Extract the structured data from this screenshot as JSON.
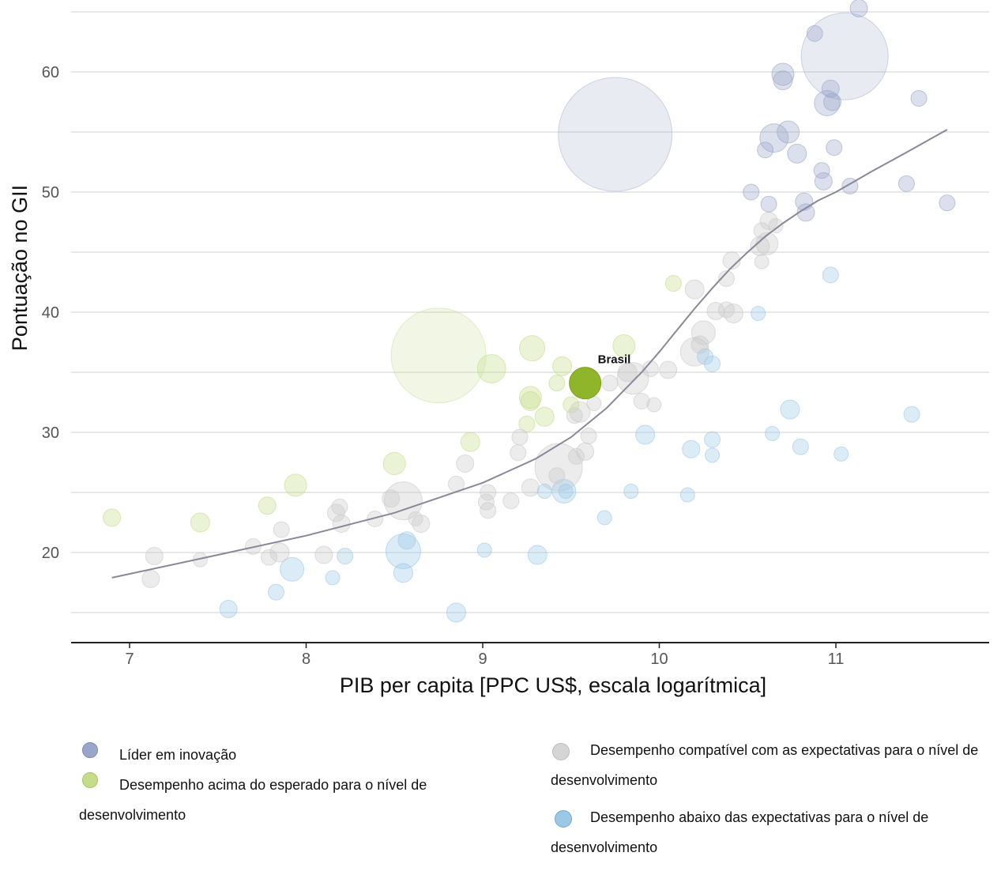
{
  "chart_data": {
    "type": "scatter",
    "title": "",
    "xlabel": "PIB per capita [PPC US$, escala logarítmica]",
    "ylabel": "Pontuação no GII",
    "xlim": [
      6.7,
      11.85
    ],
    "ylim": [
      12.5,
      65.5
    ],
    "x_ticks": [
      7,
      8,
      9,
      10,
      11
    ],
    "y_ticks": [
      20,
      30,
      40,
      50,
      60
    ],
    "y_gridlines": [
      15,
      20,
      25,
      30,
      35,
      40,
      45,
      50,
      55,
      60,
      65
    ],
    "grid": true,
    "legend_position": "bottom",
    "colors": {
      "leader": "#9aa6c9",
      "above": "#c5dc8a",
      "in_line": "#c9c9c9",
      "below": "#9cc8e8",
      "brasil": "#8fb62b",
      "trend": "#8a8797"
    },
    "series": [
      {
        "name": "Líder em inovação",
        "key": "leader",
        "points": [
          [
            11.05,
            61.3,
            55
          ],
          [
            9.75,
            54.8,
            72
          ],
          [
            10.65,
            54.5,
            18
          ],
          [
            10.7,
            59.8,
            14
          ],
          [
            10.7,
            59.3,
            12
          ],
          [
            10.73,
            55,
            14
          ],
          [
            10.95,
            57.4,
            16
          ],
          [
            10.97,
            58.6,
            11
          ],
          [
            10.98,
            57.5,
            11
          ],
          [
            10.88,
            63.2,
            10
          ],
          [
            11.13,
            65.3,
            11
          ],
          [
            11.47,
            57.8,
            10
          ],
          [
            10.6,
            53.5,
            10
          ],
          [
            10.78,
            53.2,
            12
          ],
          [
            10.99,
            53.7,
            10
          ],
          [
            10.92,
            51.8,
            10
          ],
          [
            10.93,
            50.9,
            11
          ],
          [
            11.08,
            50.5,
            10
          ],
          [
            11.4,
            50.7,
            10
          ],
          [
            10.52,
            50,
            10
          ],
          [
            10.62,
            49,
            10
          ],
          [
            10.82,
            49.2,
            11
          ],
          [
            10.83,
            48.3,
            11
          ],
          [
            11.63,
            49.1,
            10
          ]
        ]
      },
      {
        "name": "Desempenho acima do esperado para o nível de desenvolvimento",
        "key": "above",
        "points": [
          [
            8.75,
            36.4,
            60
          ],
          [
            9.05,
            35.3,
            18
          ],
          [
            9.28,
            37,
            16
          ],
          [
            9.8,
            37.2,
            14
          ],
          [
            9.45,
            35.5,
            12
          ],
          [
            9.42,
            34.1,
            10
          ],
          [
            9.27,
            32.9,
            14
          ],
          [
            9.27,
            32.6,
            12
          ],
          [
            9.35,
            31.3,
            12
          ],
          [
            9.25,
            30.7,
            10
          ],
          [
            9.5,
            32.3,
            10
          ],
          [
            8.93,
            29.2,
            12
          ],
          [
            8.5,
            27.4,
            14
          ],
          [
            7.94,
            25.6,
            14
          ],
          [
            7.78,
            23.9,
            11
          ],
          [
            7.4,
            22.5,
            12
          ],
          [
            6.9,
            22.9,
            11
          ],
          [
            10.08,
            42.4,
            10
          ]
        ]
      },
      {
        "name": "Desempenho compatível com as expectativas para o nível de desenvolvimento",
        "key": "in_line",
        "points": [
          [
            10.58,
            46.8,
            10
          ],
          [
            10.62,
            47.6,
            11
          ],
          [
            10.66,
            47.2,
            9
          ],
          [
            10.57,
            45.5,
            12
          ],
          [
            10.61,
            45.7,
            14
          ],
          [
            10.58,
            44.2,
            9
          ],
          [
            10.41,
            44.3,
            11
          ],
          [
            10.38,
            42.8,
            10
          ],
          [
            10.2,
            41.9,
            12
          ],
          [
            10.32,
            40.1,
            11
          ],
          [
            10.38,
            40.2,
            10
          ],
          [
            10.42,
            39.9,
            12
          ],
          [
            10.25,
            38.3,
            15
          ],
          [
            10.23,
            37.3,
            11
          ],
          [
            10.2,
            36.7,
            18
          ],
          [
            10.05,
            35.2,
            11
          ],
          [
            9.85,
            34.5,
            20
          ],
          [
            9.82,
            35,
            12
          ],
          [
            9.95,
            35.3,
            10
          ],
          [
            9.72,
            34.1,
            10
          ],
          [
            9.63,
            32.4,
            9
          ],
          [
            9.9,
            32.6,
            10
          ],
          [
            9.97,
            32.3,
            9
          ],
          [
            9.55,
            31.7,
            13
          ],
          [
            9.52,
            31.4,
            10
          ],
          [
            9.6,
            29.7,
            10
          ],
          [
            9.21,
            29.6,
            10
          ],
          [
            9.2,
            28.3,
            10
          ],
          [
            9.58,
            28.4,
            11
          ],
          [
            9.53,
            28,
            10
          ],
          [
            8.9,
            27.4,
            11
          ],
          [
            9.43,
            27.1,
            30
          ],
          [
            9.42,
            26.4,
            10
          ],
          [
            9.27,
            25.4,
            11
          ],
          [
            8.85,
            25.7,
            10
          ],
          [
            9.03,
            25,
            10
          ],
          [
            8.55,
            24.3,
            24
          ],
          [
            8.48,
            24.5,
            11
          ],
          [
            9.02,
            24.2,
            10
          ],
          [
            9.16,
            24.3,
            10
          ],
          [
            9.03,
            23.5,
            10
          ],
          [
            8.19,
            23.8,
            10
          ],
          [
            8.17,
            23.3,
            11
          ],
          [
            8.2,
            22.4,
            11
          ],
          [
            8.62,
            22.8,
            9
          ],
          [
            8.65,
            22.4,
            11
          ],
          [
            8.39,
            22.8,
            10
          ],
          [
            7.86,
            21.9,
            10
          ],
          [
            7.7,
            20.5,
            10
          ],
          [
            7.85,
            20,
            12
          ],
          [
            7.79,
            19.6,
            10
          ],
          [
            8.1,
            19.8,
            11
          ],
          [
            7.14,
            19.7,
            11
          ],
          [
            7.4,
            19.4,
            9
          ],
          [
            7.12,
            17.8,
            11
          ]
        ]
      },
      {
        "name": "Desempenho abaixo das expectativas para o nível de desenvolvimento",
        "key": "below",
        "points": [
          [
            10.97,
            43.1,
            10
          ],
          [
            10.56,
            39.9,
            9
          ],
          [
            10.26,
            36.3,
            10
          ],
          [
            10.3,
            35.7,
            10
          ],
          [
            10.74,
            31.9,
            12
          ],
          [
            11.43,
            31.5,
            10
          ],
          [
            9.92,
            29.8,
            12
          ],
          [
            10.64,
            29.9,
            9
          ],
          [
            10.3,
            29.4,
            10
          ],
          [
            10.18,
            28.6,
            11
          ],
          [
            10.3,
            28.1,
            9
          ],
          [
            10.8,
            28.8,
            10
          ],
          [
            11.03,
            28.2,
            9
          ],
          [
            9.46,
            25.1,
            15
          ],
          [
            9.47,
            25.1,
            9
          ],
          [
            9.84,
            25.1,
            9
          ],
          [
            9.35,
            25.1,
            9
          ],
          [
            10.16,
            24.8,
            9
          ],
          [
            9.69,
            22.9,
            9
          ],
          [
            8.57,
            21,
            11
          ],
          [
            8.55,
            20.1,
            22
          ],
          [
            9.01,
            20.2,
            9
          ],
          [
            9.31,
            19.8,
            12
          ],
          [
            8.22,
            19.7,
            10
          ],
          [
            7.92,
            18.6,
            15
          ],
          [
            8.55,
            18.3,
            12
          ],
          [
            8.15,
            17.9,
            9
          ],
          [
            7.83,
            16.7,
            10
          ],
          [
            7.56,
            15.3,
            11
          ],
          [
            8.85,
            15,
            12
          ]
        ]
      }
    ],
    "highlight": {
      "label": "Brasil",
      "x": 9.58,
      "y": 34.1,
      "size": 20
    },
    "trend_line": {
      "x": [
        6.9,
        7.5,
        8.0,
        8.5,
        9.0,
        9.3,
        9.5,
        9.7,
        9.9,
        10.0,
        10.1,
        10.2,
        10.3,
        10.4,
        10.5,
        10.6,
        10.7,
        10.8,
        10.9,
        11.0,
        11.2,
        11.4,
        11.63
      ],
      "y": [
        17.9,
        19.8,
        21.4,
        23.3,
        25.8,
        27.8,
        29.6,
        32.0,
        35.0,
        36.7,
        38.5,
        40.3,
        42.0,
        43.6,
        45.0,
        46.3,
        47.4,
        48.4,
        49.3,
        50.0,
        51.7,
        53.3,
        55.2
      ]
    }
  },
  "legend": {
    "items": [
      {
        "key": "leader",
        "label": "Líder em inovação"
      },
      {
        "key": "above",
        "label": "Desempenho acima do esperado para o nível de desenvolvimento"
      },
      {
        "key": "in_line",
        "label": "Desempenho compatível com as expectativas para o nível de desenvolvimento"
      },
      {
        "key": "below",
        "label": " Desempenho abaixo das expectativas para o nível de desenvolvimento"
      }
    ]
  }
}
